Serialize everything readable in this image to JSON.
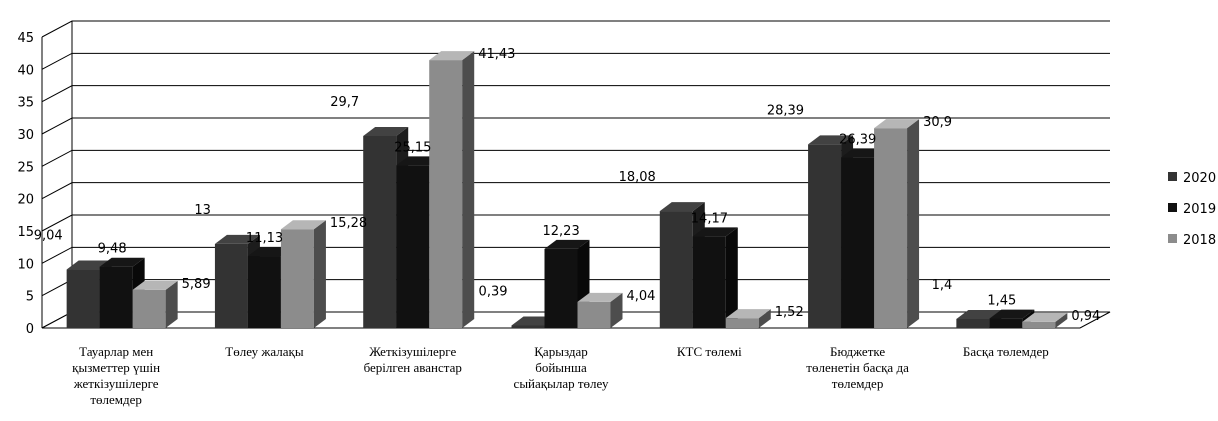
{
  "chart_data": {
    "type": "bar",
    "categories": [
      [
        "Тауарлар  мен",
        "қызметтер үшін",
        "жеткізушілерге",
        "төлемдер"
      ],
      [
        "Төлеу жалақы"
      ],
      [
        "Жеткізушілерге",
        "берілген аванстар"
      ],
      [
        "Қарыздар",
        "бойынша",
        "сыйақылар төлеу"
      ],
      [
        "КТС  төлемі"
      ],
      [
        "Бюджетке",
        "төленетін басқа да",
        "төлемдер"
      ],
      [
        "Басқа төлемдер"
      ]
    ],
    "series": [
      {
        "name": "2020",
        "color": "#333333",
        "values": [
          9.04,
          13,
          29.7,
          0.39,
          18.08,
          28.39,
          1.4
        ],
        "labels": [
          "9,04",
          "13",
          "29,7",
          "0,39",
          "18,08",
          "28,39",
          "1,4"
        ]
      },
      {
        "name": "2019",
        "color": "#111111",
        "values": [
          9.48,
          11.13,
          25.15,
          12.23,
          14.17,
          26.39,
          1.45
        ],
        "labels": [
          "9,48",
          "11,13",
          "25,15",
          "12,23",
          "14,17",
          "26,39",
          "1,45"
        ]
      },
      {
        "name": "2018",
        "color": "#8c8c8c",
        "values": [
          5.89,
          15.28,
          41.43,
          4.04,
          1.52,
          30.9,
          0.94
        ],
        "labels": [
          "5,89",
          "15,28",
          "41,43",
          "4,04",
          "1,52",
          "30,9",
          "0,94"
        ]
      }
    ],
    "yticks": [
      "0",
      "5",
      "10",
      "15",
      "20",
      "25",
      "30",
      "35",
      "40",
      "45"
    ],
    "ylim": [
      0,
      45
    ],
    "grid": true,
    "legend": "right",
    "style": "3d-clustered-column"
  }
}
